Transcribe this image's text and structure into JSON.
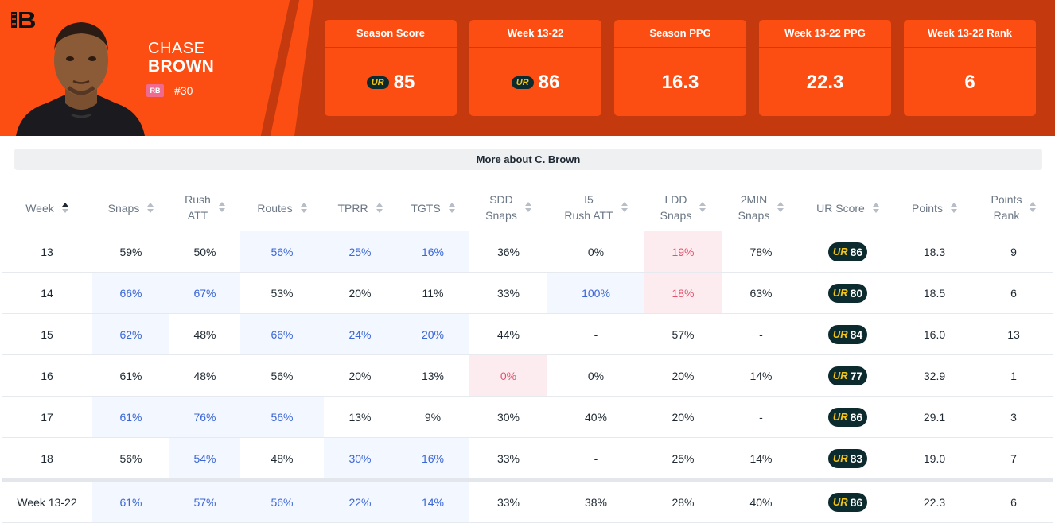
{
  "player": {
    "first_name": "CHASE",
    "last_name": "BROWN",
    "position": "RB",
    "number": "#30"
  },
  "colors": {
    "team_orange": "#fc4e12",
    "team_dark_orange": "#c5390e",
    "highlight_blue": "#3a66d6",
    "highlight_red": "#e0536d",
    "ur_badge_bg": "#0c2b2e",
    "ur_badge_mark": "#f5c518"
  },
  "cards": [
    {
      "label": "Season Score",
      "value": "85",
      "badge": "UR"
    },
    {
      "label": "Week 13-22",
      "value": "86",
      "badge": "UR"
    },
    {
      "label": "Season PPG",
      "value": "16.3"
    },
    {
      "label": "Week 13-22 PPG",
      "value": "22.3"
    },
    {
      "label": "Week 13-22 Rank",
      "value": "6"
    }
  ],
  "more_button": "More about C. Brown",
  "columns": [
    {
      "l1": "Week",
      "l2": "",
      "sort": "active"
    },
    {
      "l1": "Snaps",
      "l2": ""
    },
    {
      "l1": "Rush",
      "l2": "ATT"
    },
    {
      "l1": "Routes",
      "l2": ""
    },
    {
      "l1": "TPRR",
      "l2": ""
    },
    {
      "l1": "TGTS",
      "l2": ""
    },
    {
      "l1": "SDD",
      "l2": "Snaps"
    },
    {
      "l1": "I5",
      "l2": "Rush ATT"
    },
    {
      "l1": "LDD",
      "l2": "Snaps"
    },
    {
      "l1": "2MIN",
      "l2": "Snaps"
    },
    {
      "l1": "UR Score",
      "l2": ""
    },
    {
      "l1": "Points",
      "l2": ""
    },
    {
      "l1": "Points",
      "l2": "Rank"
    }
  ],
  "ur_mark": "UR",
  "rows": [
    {
      "cells": [
        "13",
        "59%",
        "50%",
        "56%",
        "25%",
        "16%",
        "36%",
        "0%",
        "19%",
        "78%",
        "86",
        "18.3",
        "9"
      ],
      "hl": [
        "",
        "",
        "",
        "b",
        "b",
        "b",
        "",
        "",
        "r",
        "",
        "",
        "",
        ""
      ]
    },
    {
      "cells": [
        "14",
        "66%",
        "67%",
        "53%",
        "20%",
        "11%",
        "33%",
        "100%",
        "18%",
        "63%",
        "80",
        "18.5",
        "6"
      ],
      "hl": [
        "",
        "b",
        "b",
        "",
        "",
        "",
        "",
        "b",
        "r",
        "",
        "",
        "",
        ""
      ]
    },
    {
      "cells": [
        "15",
        "62%",
        "48%",
        "66%",
        "24%",
        "20%",
        "44%",
        "-",
        "57%",
        "-",
        "84",
        "16.0",
        "13"
      ],
      "hl": [
        "",
        "b",
        "",
        "b",
        "b",
        "b",
        "",
        "",
        "",
        "",
        "",
        "",
        ""
      ]
    },
    {
      "cells": [
        "16",
        "61%",
        "48%",
        "56%",
        "20%",
        "13%",
        "0%",
        "0%",
        "20%",
        "14%",
        "77",
        "32.9",
        "1"
      ],
      "hl": [
        "",
        "",
        "",
        "",
        "",
        "",
        "r",
        "",
        "",
        "",
        "",
        "",
        ""
      ]
    },
    {
      "cells": [
        "17",
        "61%",
        "76%",
        "56%",
        "13%",
        "9%",
        "30%",
        "40%",
        "20%",
        "-",
        "86",
        "29.1",
        "3"
      ],
      "hl": [
        "",
        "b",
        "b",
        "b",
        "",
        "",
        "",
        "",
        "",
        "",
        "",
        "",
        ""
      ]
    },
    {
      "cells": [
        "18",
        "56%",
        "54%",
        "48%",
        "30%",
        "16%",
        "33%",
        "-",
        "25%",
        "14%",
        "83",
        "19.0",
        "7"
      ],
      "hl": [
        "",
        "",
        "b",
        "",
        "b",
        "b",
        "",
        "",
        "",
        "",
        "",
        "",
        ""
      ]
    }
  ],
  "total_row": {
    "cells": [
      "Week 13-22",
      "61%",
      "57%",
      "56%",
      "22%",
      "14%",
      "33%",
      "38%",
      "28%",
      "40%",
      "86",
      "22.3",
      "6"
    ],
    "hl": [
      "",
      "b",
      "b",
      "b",
      "b",
      "b",
      "",
      "",
      "",
      "",
      "",
      "",
      ""
    ]
  }
}
